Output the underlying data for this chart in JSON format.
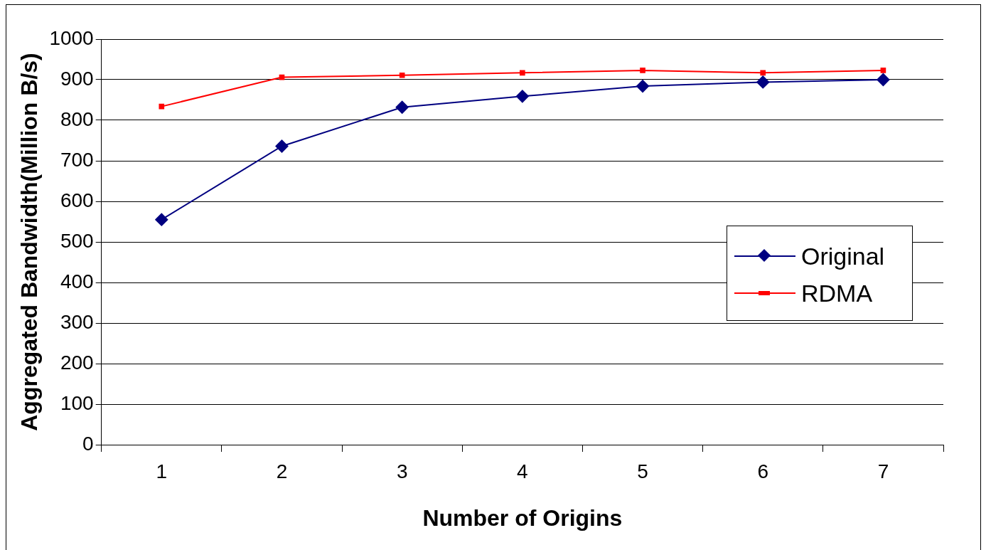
{
  "chart_data": {
    "type": "line",
    "xlabel": "Number of Origins",
    "ylabel": "Aggregated Bandwidth(Million B/s)",
    "categories": [
      "1",
      "2",
      "3",
      "4",
      "5",
      "6",
      "7"
    ],
    "series": [
      {
        "name": "Original",
        "color": "#000080",
        "marker": "diamond",
        "values": [
          555,
          736,
          832,
          859,
          884,
          894,
          900
        ]
      },
      {
        "name": "RDMA",
        "color": "#ff0000",
        "marker": "square",
        "values": [
          834,
          906,
          911,
          917,
          923,
          917,
          923
        ]
      }
    ],
    "ylim": [
      0,
      1000
    ],
    "yticks": [
      0,
      100,
      200,
      300,
      400,
      500,
      600,
      700,
      800,
      900,
      1000
    ],
    "grid": "y",
    "legend": "right"
  }
}
